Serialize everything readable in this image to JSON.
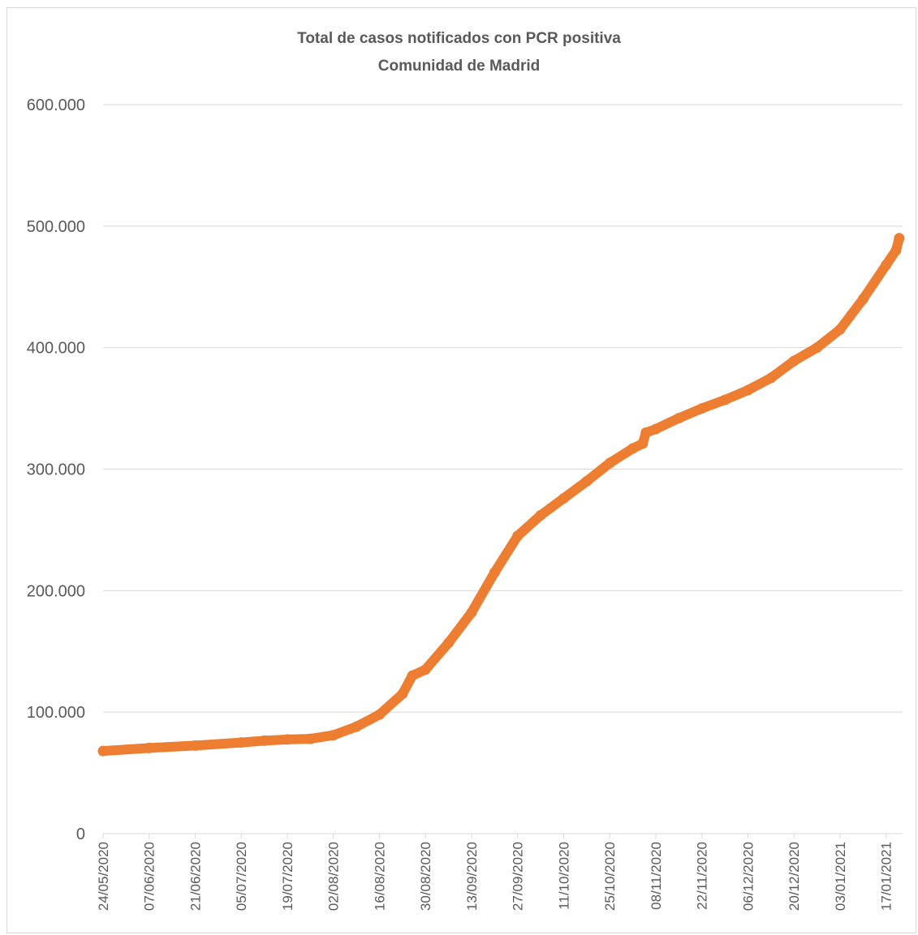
{
  "chart_data": {
    "type": "line",
    "title": "Total de casos notificados con PCR positiva",
    "subtitle": "Comunidad de Madrid",
    "xlabel": "",
    "ylabel": "",
    "ylim": [
      0,
      600000
    ],
    "yticks": [
      0,
      100000,
      200000,
      300000,
      400000,
      500000,
      600000
    ],
    "ytick_labels": [
      "0",
      "100.000",
      "200.000",
      "300.000",
      "400.000",
      "500.000",
      "600.000"
    ],
    "xlim": [
      "2020-05-24",
      "2021-01-22"
    ],
    "xtick_labels": [
      "24/05/2020",
      "07/06/2020",
      "21/06/2020",
      "05/07/2020",
      "19/07/2020",
      "02/08/2020",
      "16/08/2020",
      "30/08/2020",
      "13/09/2020",
      "27/09/2020",
      "11/10/2020",
      "25/10/2020",
      "08/11/2020",
      "22/11/2020",
      "06/12/2020",
      "20/12/2020",
      "03/01/2021",
      "17/01/2021"
    ],
    "grid": true,
    "legend": "none",
    "colors": {
      "series": "#ed7d31",
      "grid": "#d9d9d9",
      "text": "#595959"
    },
    "series": [
      {
        "x": [
          "2020-05-24",
          "2020-06-07",
          "2020-06-21",
          "2020-07-05",
          "2020-07-12",
          "2020-07-19",
          "2020-07-26",
          "2020-08-02",
          "2020-08-09",
          "2020-08-16",
          "2020-08-23",
          "2020-08-26",
          "2020-08-30",
          "2020-09-06",
          "2020-09-13",
          "2020-09-20",
          "2020-09-27",
          "2020-10-04",
          "2020-10-11",
          "2020-10-18",
          "2020-10-25",
          "2020-11-01",
          "2020-11-04",
          "2020-11-05",
          "2020-11-08",
          "2020-11-15",
          "2020-11-22",
          "2020-11-29",
          "2020-12-06",
          "2020-12-13",
          "2020-12-20",
          "2020-12-27",
          "2021-01-03",
          "2021-01-10",
          "2021-01-17",
          "2021-01-20",
          "2021-01-21"
        ],
        "values": [
          68000,
          70500,
          72500,
          75000,
          76500,
          77500,
          78000,
          81000,
          88000,
          98000,
          115000,
          130000,
          135000,
          157000,
          182000,
          215000,
          245000,
          262000,
          276000,
          290000,
          305000,
          317000,
          321000,
          330000,
          333000,
          342000,
          350000,
          357000,
          365000,
          375000,
          389000,
          400000,
          415000,
          440000,
          468000,
          480000,
          490000
        ]
      }
    ]
  }
}
